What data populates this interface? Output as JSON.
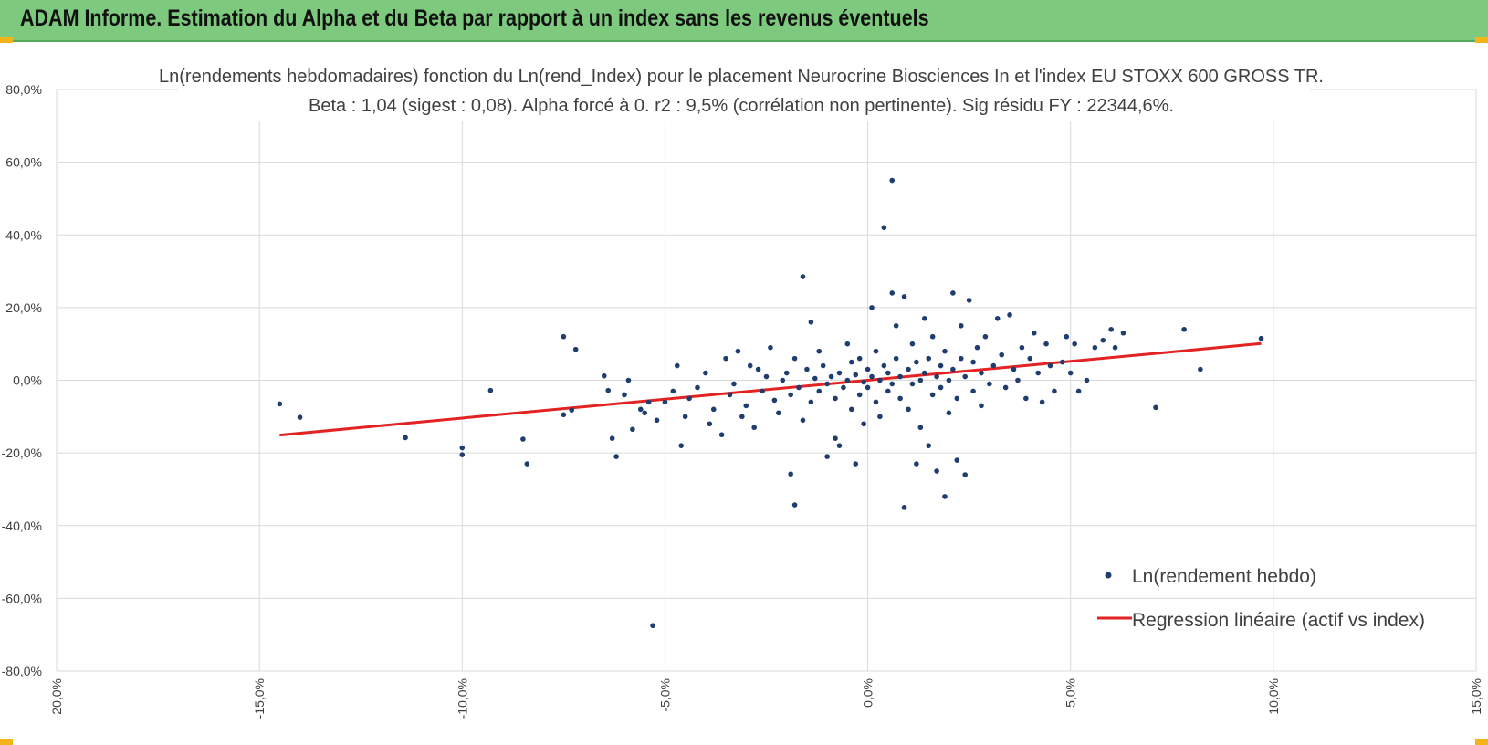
{
  "header": {
    "title": "ADAM Informe. Estimation du Alpha et du Beta par rapport à un index sans les revenus éventuels"
  },
  "colors": {
    "header_bg": "#7dc97d",
    "accent_corner": "#f2b418",
    "scatter_point": "#1f3d6e",
    "regression_line": "#e32222",
    "grid": "#d9d9d9"
  },
  "chart_data": {
    "type": "scatter",
    "title": "Ln(rendements hebdomadaires) fonction du Ln(rend_Index) pour le placement Neurocrine Biosciences In et l'index EU STOXX 600 GROSS TR.",
    "subtitle": "Beta : 1,04 (sigest : 0,08). Alpha forcé à 0. r2 : 9,5% (corrélation non pertinente). Sig résidu FY : 22344,6%.",
    "xlabel": "",
    "ylabel": "",
    "xlim": [
      -0.2,
      0.15
    ],
    "ylim": [
      -0.8,
      0.8
    ],
    "x_ticks": [
      "-20,0%",
      "-15,0%",
      "-10,0%",
      "-5,0%",
      "0,0%",
      "5,0%",
      "10,0%",
      "15,0%"
    ],
    "y_ticks": [
      "80,0%",
      "60,0%",
      "40,0%",
      "20,0%",
      "0,0%",
      "-20,0%",
      "-40,0%",
      "-60,0%",
      "-80,0%"
    ],
    "grid": true,
    "legend_position": "bottom-right",
    "series": [
      {
        "name": "Ln(rendement hebdo)",
        "kind": "scatter",
        "points": [
          [
            -0.145,
            -0.065
          ],
          [
            -0.14,
            -0.102
          ],
          [
            -0.114,
            -0.158
          ],
          [
            -0.1,
            -0.186
          ],
          [
            -0.1,
            -0.205
          ],
          [
            -0.093,
            -0.028
          ],
          [
            -0.085,
            -0.162
          ],
          [
            -0.084,
            -0.23
          ],
          [
            -0.075,
            0.12
          ],
          [
            -0.072,
            0.085
          ],
          [
            -0.073,
            -0.082
          ],
          [
            -0.075,
            -0.095
          ],
          [
            -0.065,
            0.012
          ],
          [
            -0.064,
            -0.028
          ],
          [
            -0.063,
            -0.16
          ],
          [
            -0.062,
            -0.21
          ],
          [
            -0.06,
            -0.04
          ],
          [
            -0.059,
            0.0
          ],
          [
            -0.058,
            -0.135
          ],
          [
            -0.056,
            -0.08
          ],
          [
            -0.055,
            -0.09
          ],
          [
            -0.054,
            -0.06
          ],
          [
            -0.053,
            -0.675
          ],
          [
            -0.052,
            -0.11
          ],
          [
            -0.05,
            -0.06
          ],
          [
            -0.048,
            -0.03
          ],
          [
            -0.047,
            0.04
          ],
          [
            -0.046,
            -0.18
          ],
          [
            -0.045,
            -0.1
          ],
          [
            -0.044,
            -0.05
          ],
          [
            -0.042,
            -0.02
          ],
          [
            -0.04,
            0.02
          ],
          [
            -0.039,
            -0.12
          ],
          [
            -0.038,
            -0.08
          ],
          [
            -0.036,
            -0.15
          ],
          [
            -0.035,
            0.06
          ],
          [
            -0.034,
            -0.04
          ],
          [
            -0.033,
            -0.01
          ],
          [
            -0.032,
            0.08
          ],
          [
            -0.031,
            -0.1
          ],
          [
            -0.03,
            -0.07
          ],
          [
            -0.029,
            0.04
          ],
          [
            -0.028,
            -0.13
          ],
          [
            -0.027,
            0.03
          ],
          [
            -0.026,
            -0.03
          ],
          [
            -0.025,
            0.01
          ],
          [
            -0.024,
            0.09
          ],
          [
            -0.023,
            -0.055
          ],
          [
            -0.022,
            -0.09
          ],
          [
            -0.021,
            0.0
          ],
          [
            -0.02,
            0.02
          ],
          [
            -0.019,
            -0.04
          ],
          [
            -0.019,
            -0.258
          ],
          [
            -0.018,
            -0.343
          ],
          [
            -0.018,
            0.06
          ],
          [
            -0.017,
            -0.02
          ],
          [
            -0.016,
            0.285
          ],
          [
            -0.016,
            -0.11
          ],
          [
            -0.015,
            0.03
          ],
          [
            -0.014,
            0.16
          ],
          [
            -0.014,
            -0.06
          ],
          [
            -0.013,
            0.005
          ],
          [
            -0.012,
            0.08
          ],
          [
            -0.012,
            -0.03
          ],
          [
            -0.011,
            0.04
          ],
          [
            -0.01,
            -0.01
          ],
          [
            -0.01,
            -0.21
          ],
          [
            -0.009,
            0.01
          ],
          [
            -0.008,
            -0.05
          ],
          [
            -0.008,
            -0.16
          ],
          [
            -0.007,
            0.02
          ],
          [
            -0.007,
            -0.18
          ],
          [
            -0.006,
            -0.02
          ],
          [
            -0.005,
            0.1
          ],
          [
            -0.005,
            0.0
          ],
          [
            -0.004,
            0.05
          ],
          [
            -0.004,
            -0.08
          ],
          [
            -0.003,
            -0.23
          ],
          [
            -0.003,
            0.015
          ],
          [
            -0.002,
            -0.04
          ],
          [
            -0.002,
            0.06
          ],
          [
            -0.001,
            -0.005
          ],
          [
            -0.001,
            -0.12
          ],
          [
            0.0,
            0.03
          ],
          [
            0.0,
            -0.02
          ],
          [
            0.001,
            0.2
          ],
          [
            0.001,
            0.01
          ],
          [
            0.002,
            -0.06
          ],
          [
            0.002,
            0.08
          ],
          [
            0.003,
            0.0
          ],
          [
            0.003,
            -0.1
          ],
          [
            0.004,
            0.04
          ],
          [
            0.004,
            0.42
          ],
          [
            0.005,
            -0.03
          ],
          [
            0.005,
            0.02
          ],
          [
            0.006,
            0.55
          ],
          [
            0.006,
            0.24
          ],
          [
            0.006,
            -0.01
          ],
          [
            0.007,
            0.15
          ],
          [
            0.007,
            0.06
          ],
          [
            0.008,
            -0.05
          ],
          [
            0.008,
            0.01
          ],
          [
            0.009,
            0.23
          ],
          [
            0.009,
            -0.35
          ],
          [
            0.01,
            0.03
          ],
          [
            0.01,
            -0.08
          ],
          [
            0.011,
            0.1
          ],
          [
            0.011,
            -0.01
          ],
          [
            0.012,
            0.05
          ],
          [
            0.012,
            -0.23
          ],
          [
            0.013,
            0.0
          ],
          [
            0.013,
            -0.13
          ],
          [
            0.014,
            0.17
          ],
          [
            0.014,
            0.02
          ],
          [
            0.015,
            -0.18
          ],
          [
            0.015,
            0.06
          ],
          [
            0.016,
            -0.04
          ],
          [
            0.016,
            0.12
          ],
          [
            0.017,
            0.01
          ],
          [
            0.017,
            -0.25
          ],
          [
            0.018,
            0.04
          ],
          [
            0.018,
            -0.02
          ],
          [
            0.019,
            0.08
          ],
          [
            0.019,
            -0.32
          ],
          [
            0.02,
            0.0
          ],
          [
            0.02,
            -0.09
          ],
          [
            0.021,
            0.24
          ],
          [
            0.021,
            0.03
          ],
          [
            0.022,
            -0.22
          ],
          [
            0.022,
            -0.05
          ],
          [
            0.023,
            0.06
          ],
          [
            0.023,
            0.15
          ],
          [
            0.024,
            -0.26
          ],
          [
            0.024,
            0.01
          ],
          [
            0.025,
            0.22
          ],
          [
            0.026,
            -0.03
          ],
          [
            0.026,
            0.05
          ],
          [
            0.027,
            0.09
          ],
          [
            0.028,
            -0.07
          ],
          [
            0.028,
            0.02
          ],
          [
            0.029,
            0.12
          ],
          [
            0.03,
            -0.01
          ],
          [
            0.031,
            0.04
          ],
          [
            0.032,
            0.17
          ],
          [
            0.033,
            0.07
          ],
          [
            0.034,
            -0.02
          ],
          [
            0.035,
            0.18
          ],
          [
            0.036,
            0.03
          ],
          [
            0.037,
            0.0
          ],
          [
            0.038,
            0.09
          ],
          [
            0.039,
            -0.05
          ],
          [
            0.04,
            0.06
          ],
          [
            0.041,
            0.13
          ],
          [
            0.042,
            0.02
          ],
          [
            0.043,
            -0.06
          ],
          [
            0.044,
            0.1
          ],
          [
            0.045,
            0.04
          ],
          [
            0.046,
            -0.03
          ],
          [
            0.048,
            0.05
          ],
          [
            0.049,
            0.12
          ],
          [
            0.05,
            0.02
          ],
          [
            0.051,
            0.1
          ],
          [
            0.052,
            -0.03
          ],
          [
            0.054,
            0.0
          ],
          [
            0.056,
            0.09
          ],
          [
            0.058,
            0.11
          ],
          [
            0.06,
            0.14
          ],
          [
            0.061,
            0.09
          ],
          [
            0.063,
            0.13
          ],
          [
            0.071,
            -0.075
          ],
          [
            0.078,
            0.14
          ],
          [
            0.082,
            0.03
          ],
          [
            0.097,
            0.115
          ]
        ]
      },
      {
        "name": "Regression linéaire (actif vs index)",
        "kind": "line",
        "points": [
          [
            -0.145,
            -0.151
          ],
          [
            0.097,
            0.101
          ]
        ]
      }
    ]
  }
}
